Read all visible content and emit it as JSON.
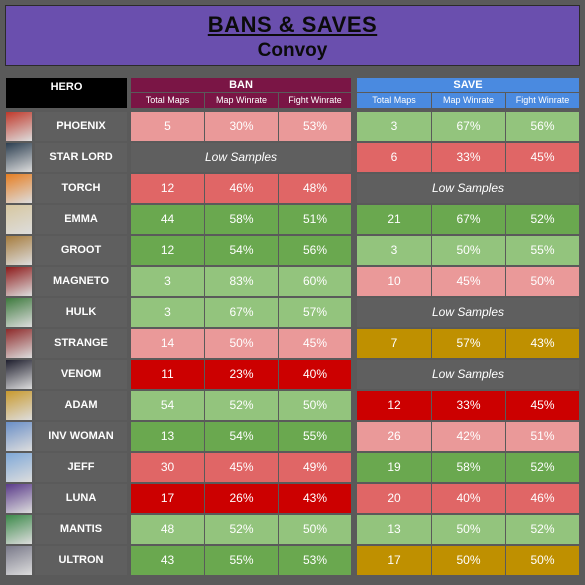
{
  "title": "BANS & SAVES",
  "subtitle": "Convoy",
  "headers": {
    "hero": "HERO",
    "ban": "BAN",
    "save": "SAVE",
    "ban_sub": [
      "Total Maps",
      "Map Winrate",
      "Fight Winrate"
    ],
    "save_sub": [
      "Total Maps",
      "Map Winrate",
      "Fight Winrate"
    ]
  },
  "colors": {
    "title_bg": "#6a4fae",
    "ban_header": "#7a1545",
    "save_header": "#4a8ae0",
    "dark_green": "#6aa84f",
    "light_green": "#93c47d",
    "light_red": "#ea9999",
    "red": "#e06666",
    "dark_red": "#cc0000",
    "gold": "#bf9000",
    "gray": "#5f5f5f"
  },
  "low_samples_label": "Low Samples",
  "rows": [
    {
      "hero": "PHOENIX",
      "portrait": "phoenix-portrait",
      "ban": [
        "5",
        "30%",
        "53%"
      ],
      "ban_colors": [
        "#ea9999",
        "#ea9999",
        "#ea9999"
      ],
      "save": [
        "3",
        "67%",
        "56%"
      ],
      "save_colors": [
        "#93c47d",
        "#93c47d",
        "#93c47d"
      ]
    },
    {
      "hero": "STAR LORD",
      "portrait": "star-lord-portrait",
      "ban": null,
      "save": [
        "6",
        "33%",
        "45%"
      ],
      "save_colors": [
        "#e06666",
        "#e06666",
        "#e06666"
      ]
    },
    {
      "hero": "TORCH",
      "portrait": "torch-portrait",
      "ban": [
        "12",
        "46%",
        "48%"
      ],
      "ban_colors": [
        "#e06666",
        "#e06666",
        "#e06666"
      ],
      "save": null
    },
    {
      "hero": "EMMA",
      "portrait": "emma-portrait",
      "ban": [
        "44",
        "58%",
        "51%"
      ],
      "ban_colors": [
        "#6aa84f",
        "#6aa84f",
        "#6aa84f"
      ],
      "save": [
        "21",
        "67%",
        "52%"
      ],
      "save_colors": [
        "#6aa84f",
        "#6aa84f",
        "#6aa84f"
      ]
    },
    {
      "hero": "GROOT",
      "portrait": "groot-portrait",
      "ban": [
        "12",
        "54%",
        "56%"
      ],
      "ban_colors": [
        "#6aa84f",
        "#6aa84f",
        "#6aa84f"
      ],
      "save": [
        "3",
        "50%",
        "55%"
      ],
      "save_colors": [
        "#93c47d",
        "#93c47d",
        "#93c47d"
      ]
    },
    {
      "hero": "MAGNETO",
      "portrait": "magneto-portrait",
      "ban": [
        "3",
        "83%",
        "60%"
      ],
      "ban_colors": [
        "#93c47d",
        "#93c47d",
        "#93c47d"
      ],
      "save": [
        "10",
        "45%",
        "50%"
      ],
      "save_colors": [
        "#ea9999",
        "#ea9999",
        "#ea9999"
      ]
    },
    {
      "hero": "HULK",
      "portrait": "hulk-portrait",
      "ban": [
        "3",
        "67%",
        "57%"
      ],
      "ban_colors": [
        "#93c47d",
        "#93c47d",
        "#93c47d"
      ],
      "save": null
    },
    {
      "hero": "STRANGE",
      "portrait": "strange-portrait",
      "ban": [
        "14",
        "50%",
        "45%"
      ],
      "ban_colors": [
        "#ea9999",
        "#ea9999",
        "#ea9999"
      ],
      "save": [
        "7",
        "57%",
        "43%"
      ],
      "save_colors": [
        "#bf9000",
        "#bf9000",
        "#bf9000"
      ]
    },
    {
      "hero": "VENOM",
      "portrait": "venom-portrait",
      "ban": [
        "11",
        "23%",
        "40%"
      ],
      "ban_colors": [
        "#cc0000",
        "#cc0000",
        "#cc0000"
      ],
      "save": null
    },
    {
      "hero": "ADAM",
      "portrait": "adam-portrait",
      "ban": [
        "54",
        "52%",
        "50%"
      ],
      "ban_colors": [
        "#93c47d",
        "#93c47d",
        "#93c47d"
      ],
      "save": [
        "12",
        "33%",
        "45%"
      ],
      "save_colors": [
        "#cc0000",
        "#cc0000",
        "#cc0000"
      ]
    },
    {
      "hero": "INV WOMAN",
      "portrait": "inv-woman-portrait",
      "ban": [
        "13",
        "54%",
        "55%"
      ],
      "ban_colors": [
        "#6aa84f",
        "#6aa84f",
        "#6aa84f"
      ],
      "save": [
        "26",
        "42%",
        "51%"
      ],
      "save_colors": [
        "#ea9999",
        "#ea9999",
        "#ea9999"
      ]
    },
    {
      "hero": "JEFF",
      "portrait": "jeff-portrait",
      "ban": [
        "30",
        "45%",
        "49%"
      ],
      "ban_colors": [
        "#e06666",
        "#e06666",
        "#e06666"
      ],
      "save": [
        "19",
        "58%",
        "52%"
      ],
      "save_colors": [
        "#6aa84f",
        "#6aa84f",
        "#6aa84f"
      ]
    },
    {
      "hero": "LUNA",
      "portrait": "luna-portrait",
      "ban": [
        "17",
        "26%",
        "43%"
      ],
      "ban_colors": [
        "#cc0000",
        "#cc0000",
        "#cc0000"
      ],
      "save": [
        "20",
        "40%",
        "46%"
      ],
      "save_colors": [
        "#e06666",
        "#e06666",
        "#e06666"
      ]
    },
    {
      "hero": "MANTIS",
      "portrait": "mantis-portrait",
      "ban": [
        "48",
        "52%",
        "50%"
      ],
      "ban_colors": [
        "#93c47d",
        "#93c47d",
        "#93c47d"
      ],
      "save": [
        "13",
        "50%",
        "52%"
      ],
      "save_colors": [
        "#93c47d",
        "#93c47d",
        "#93c47d"
      ]
    },
    {
      "hero": "ULTRON",
      "portrait": "ultron-portrait",
      "ban": [
        "43",
        "55%",
        "53%"
      ],
      "ban_colors": [
        "#6aa84f",
        "#6aa84f",
        "#6aa84f"
      ],
      "save": [
        "17",
        "50%",
        "50%"
      ],
      "save_colors": [
        "#bf9000",
        "#bf9000",
        "#bf9000"
      ]
    }
  ]
}
